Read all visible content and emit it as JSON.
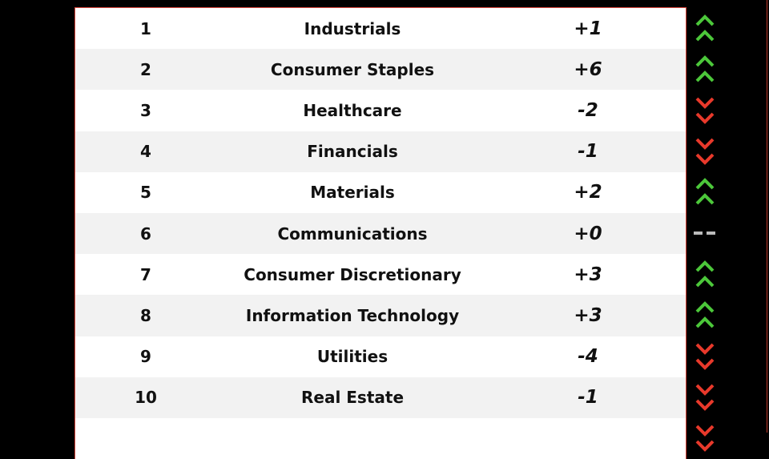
{
  "colors": {
    "up": "#4cc73a",
    "down": "#e8392b",
    "flat": "#bbbbbb",
    "border": "#d9453a"
  },
  "rows": [
    {
      "rank": "1",
      "sector": "Industrials",
      "change": "+1",
      "trend": "up"
    },
    {
      "rank": "2",
      "sector": "Consumer Staples",
      "change": "+6",
      "trend": "up"
    },
    {
      "rank": "3",
      "sector": "Healthcare",
      "change": "-2",
      "trend": "down"
    },
    {
      "rank": "4",
      "sector": "Financials",
      "change": "-1",
      "trend": "down"
    },
    {
      "rank": "5",
      "sector": "Materials",
      "change": "+2",
      "trend": "up"
    },
    {
      "rank": "6",
      "sector": "Communications",
      "change": "+0",
      "trend": "flat"
    },
    {
      "rank": "7",
      "sector": "Consumer Discretionary",
      "change": "+3",
      "trend": "up"
    },
    {
      "rank": "8",
      "sector": "Information Technology",
      "change": "+3",
      "trend": "up"
    },
    {
      "rank": "9",
      "sector": "Utilities",
      "change": "-4",
      "trend": "down"
    },
    {
      "rank": "10",
      "sector": "Real Estate",
      "change": "-1",
      "trend": "down"
    },
    {
      "rank": "",
      "sector": "",
      "change": "",
      "trend": "down"
    }
  ]
}
